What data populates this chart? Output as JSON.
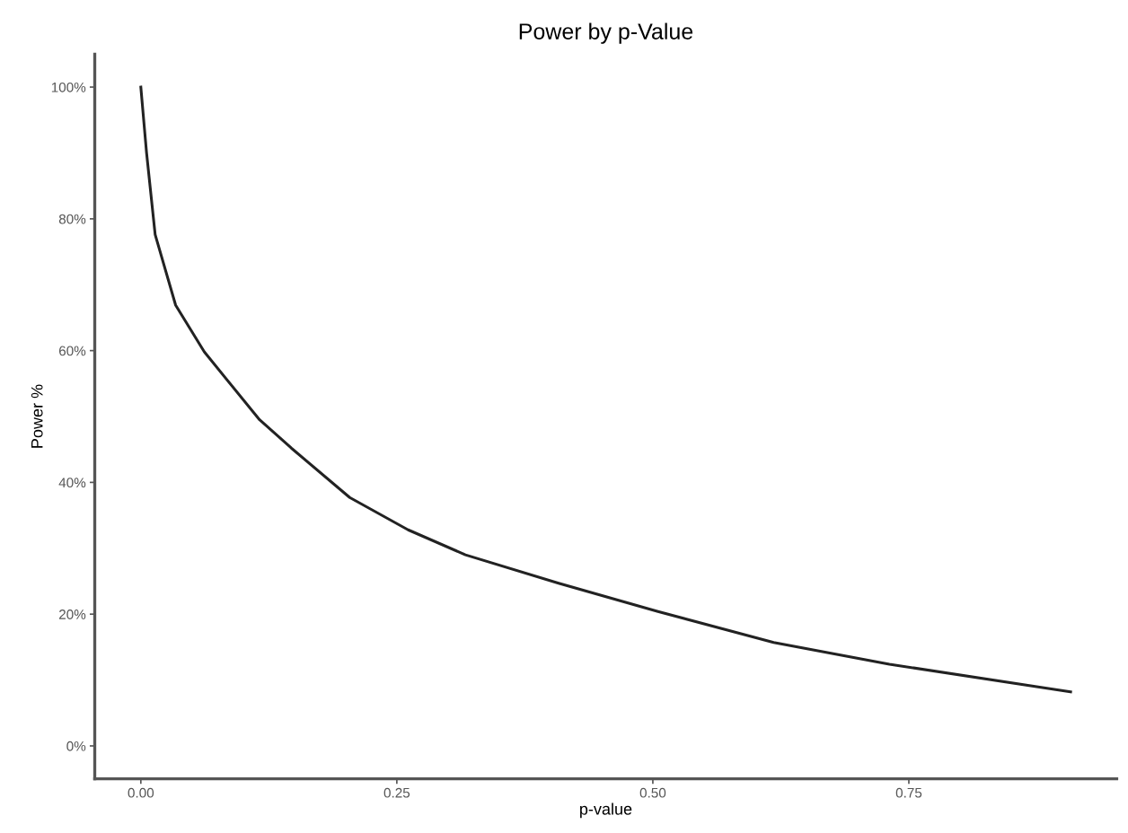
{
  "chart_data": {
    "type": "line",
    "title": "Power by p-Value",
    "xlabel": "p-value",
    "ylabel": "Power %",
    "x": [
      0.0,
      0.0056,
      0.014,
      0.034,
      0.062,
      0.116,
      0.147,
      0.204,
      0.261,
      0.317,
      0.408,
      0.505,
      0.618,
      0.731,
      0.908
    ],
    "series": [
      {
        "color": "#222222",
        "values": [
          100,
          90.0,
          77.6,
          66.9,
          59.8,
          49.5,
          45.2,
          37.7,
          32.8,
          29.0,
          24.7,
          20.4,
          15.7,
          12.4,
          8.2
        ]
      }
    ],
    "xlim": [
      -0.045,
      0.953
    ],
    "ylim": [
      -5,
      105
    ],
    "xticks": [
      {
        "value": 0,
        "label": "0.00"
      },
      {
        "value": 0.25,
        "label": "0.25"
      },
      {
        "value": 0.5,
        "label": "0.50"
      },
      {
        "value": 0.75,
        "label": "0.75"
      }
    ],
    "yticks": [
      {
        "value": 0,
        "label": "0%"
      },
      {
        "value": 20,
        "label": "20%"
      },
      {
        "value": 40,
        "label": "40%"
      },
      {
        "value": 60,
        "label": "60%"
      },
      {
        "value": 80,
        "label": "80%"
      },
      {
        "value": 100,
        "label": "100%"
      }
    ],
    "grid": false,
    "legend": false,
    "marker": "none",
    "line_style": "solid"
  }
}
